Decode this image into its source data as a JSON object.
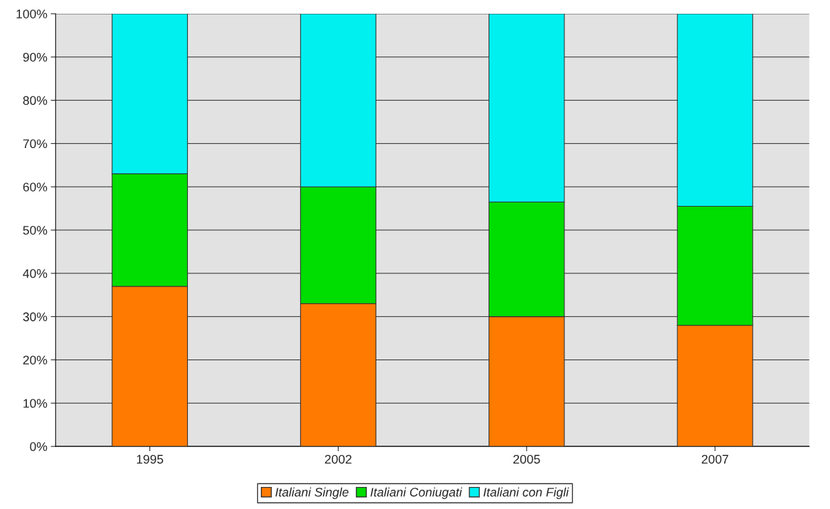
{
  "chart_data": {
    "type": "bar",
    "stacked": true,
    "categories": [
      "1995",
      "2002",
      "2005",
      "2007"
    ],
    "series": [
      {
        "name": "Italiani Single",
        "color": "#ff7a00",
        "values": [
          37,
          33,
          30,
          28
        ]
      },
      {
        "name": "Italiani Coniugati",
        "color": "#00dd00",
        "values": [
          26,
          27,
          26.5,
          27.5
        ]
      },
      {
        "name": "Italiani con Figli",
        "color": "#00f0f0",
        "values": [
          37,
          40,
          43.5,
          44.5
        ]
      }
    ],
    "ylim": [
      0,
      100
    ],
    "yticks": [
      {
        "value": 0,
        "label": "0%"
      },
      {
        "value": 10,
        "label": "10%"
      },
      {
        "value": 20,
        "label": "20%"
      },
      {
        "value": 30,
        "label": "30%"
      },
      {
        "value": 40,
        "label": "40%"
      },
      {
        "value": 50,
        "label": "50%"
      },
      {
        "value": 60,
        "label": "60%"
      },
      {
        "value": 70,
        "label": "70%"
      },
      {
        "value": 80,
        "label": "80%"
      },
      {
        "value": 90,
        "label": "90%"
      },
      {
        "value": 100,
        "label": "100%"
      }
    ],
    "grid": "y",
    "legend": "bottom"
  }
}
